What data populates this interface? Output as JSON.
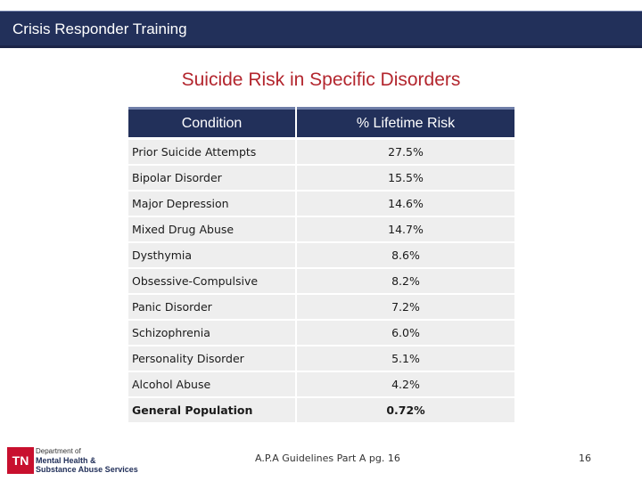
{
  "header": {
    "title": "Crisis Responder Training"
  },
  "slide": {
    "title": "Suicide Risk in Specific Disorders"
  },
  "table": {
    "columns": [
      "Condition",
      "% Lifetime Risk"
    ],
    "rows": [
      {
        "condition": "Prior Suicide Attempts",
        "risk": "27.5%"
      },
      {
        "condition": "Bipolar Disorder",
        "risk": "15.5%"
      },
      {
        "condition": "Major Depression",
        "risk": "14.6%"
      },
      {
        "condition": "Mixed Drug Abuse",
        "risk": "14.7%"
      },
      {
        "condition": "Dysthymia",
        "risk": "8.6%"
      },
      {
        "condition": "Obsessive-Compulsive",
        "risk": "8.2%"
      },
      {
        "condition": "Panic Disorder",
        "risk": "7.2%"
      },
      {
        "condition": "Schizophrenia",
        "risk": "6.0%"
      },
      {
        "condition": "Personality Disorder",
        "risk": "5.1%"
      },
      {
        "condition": "Alcohol Abuse",
        "risk": "4.2%"
      },
      {
        "condition": "General Population",
        "risk": "0.72%"
      }
    ]
  },
  "footer": {
    "citation": "A.P.A Guidelines Part A pg. 16",
    "page_number": "16",
    "logo": {
      "badge": "TN",
      "line1": "Department of",
      "line2": "Mental Health &",
      "line3": "Substance Abuse Services"
    }
  },
  "colors": {
    "header_bg": "#22305a",
    "title_red": "#b3262e",
    "row_bg": "#eeeeee"
  }
}
